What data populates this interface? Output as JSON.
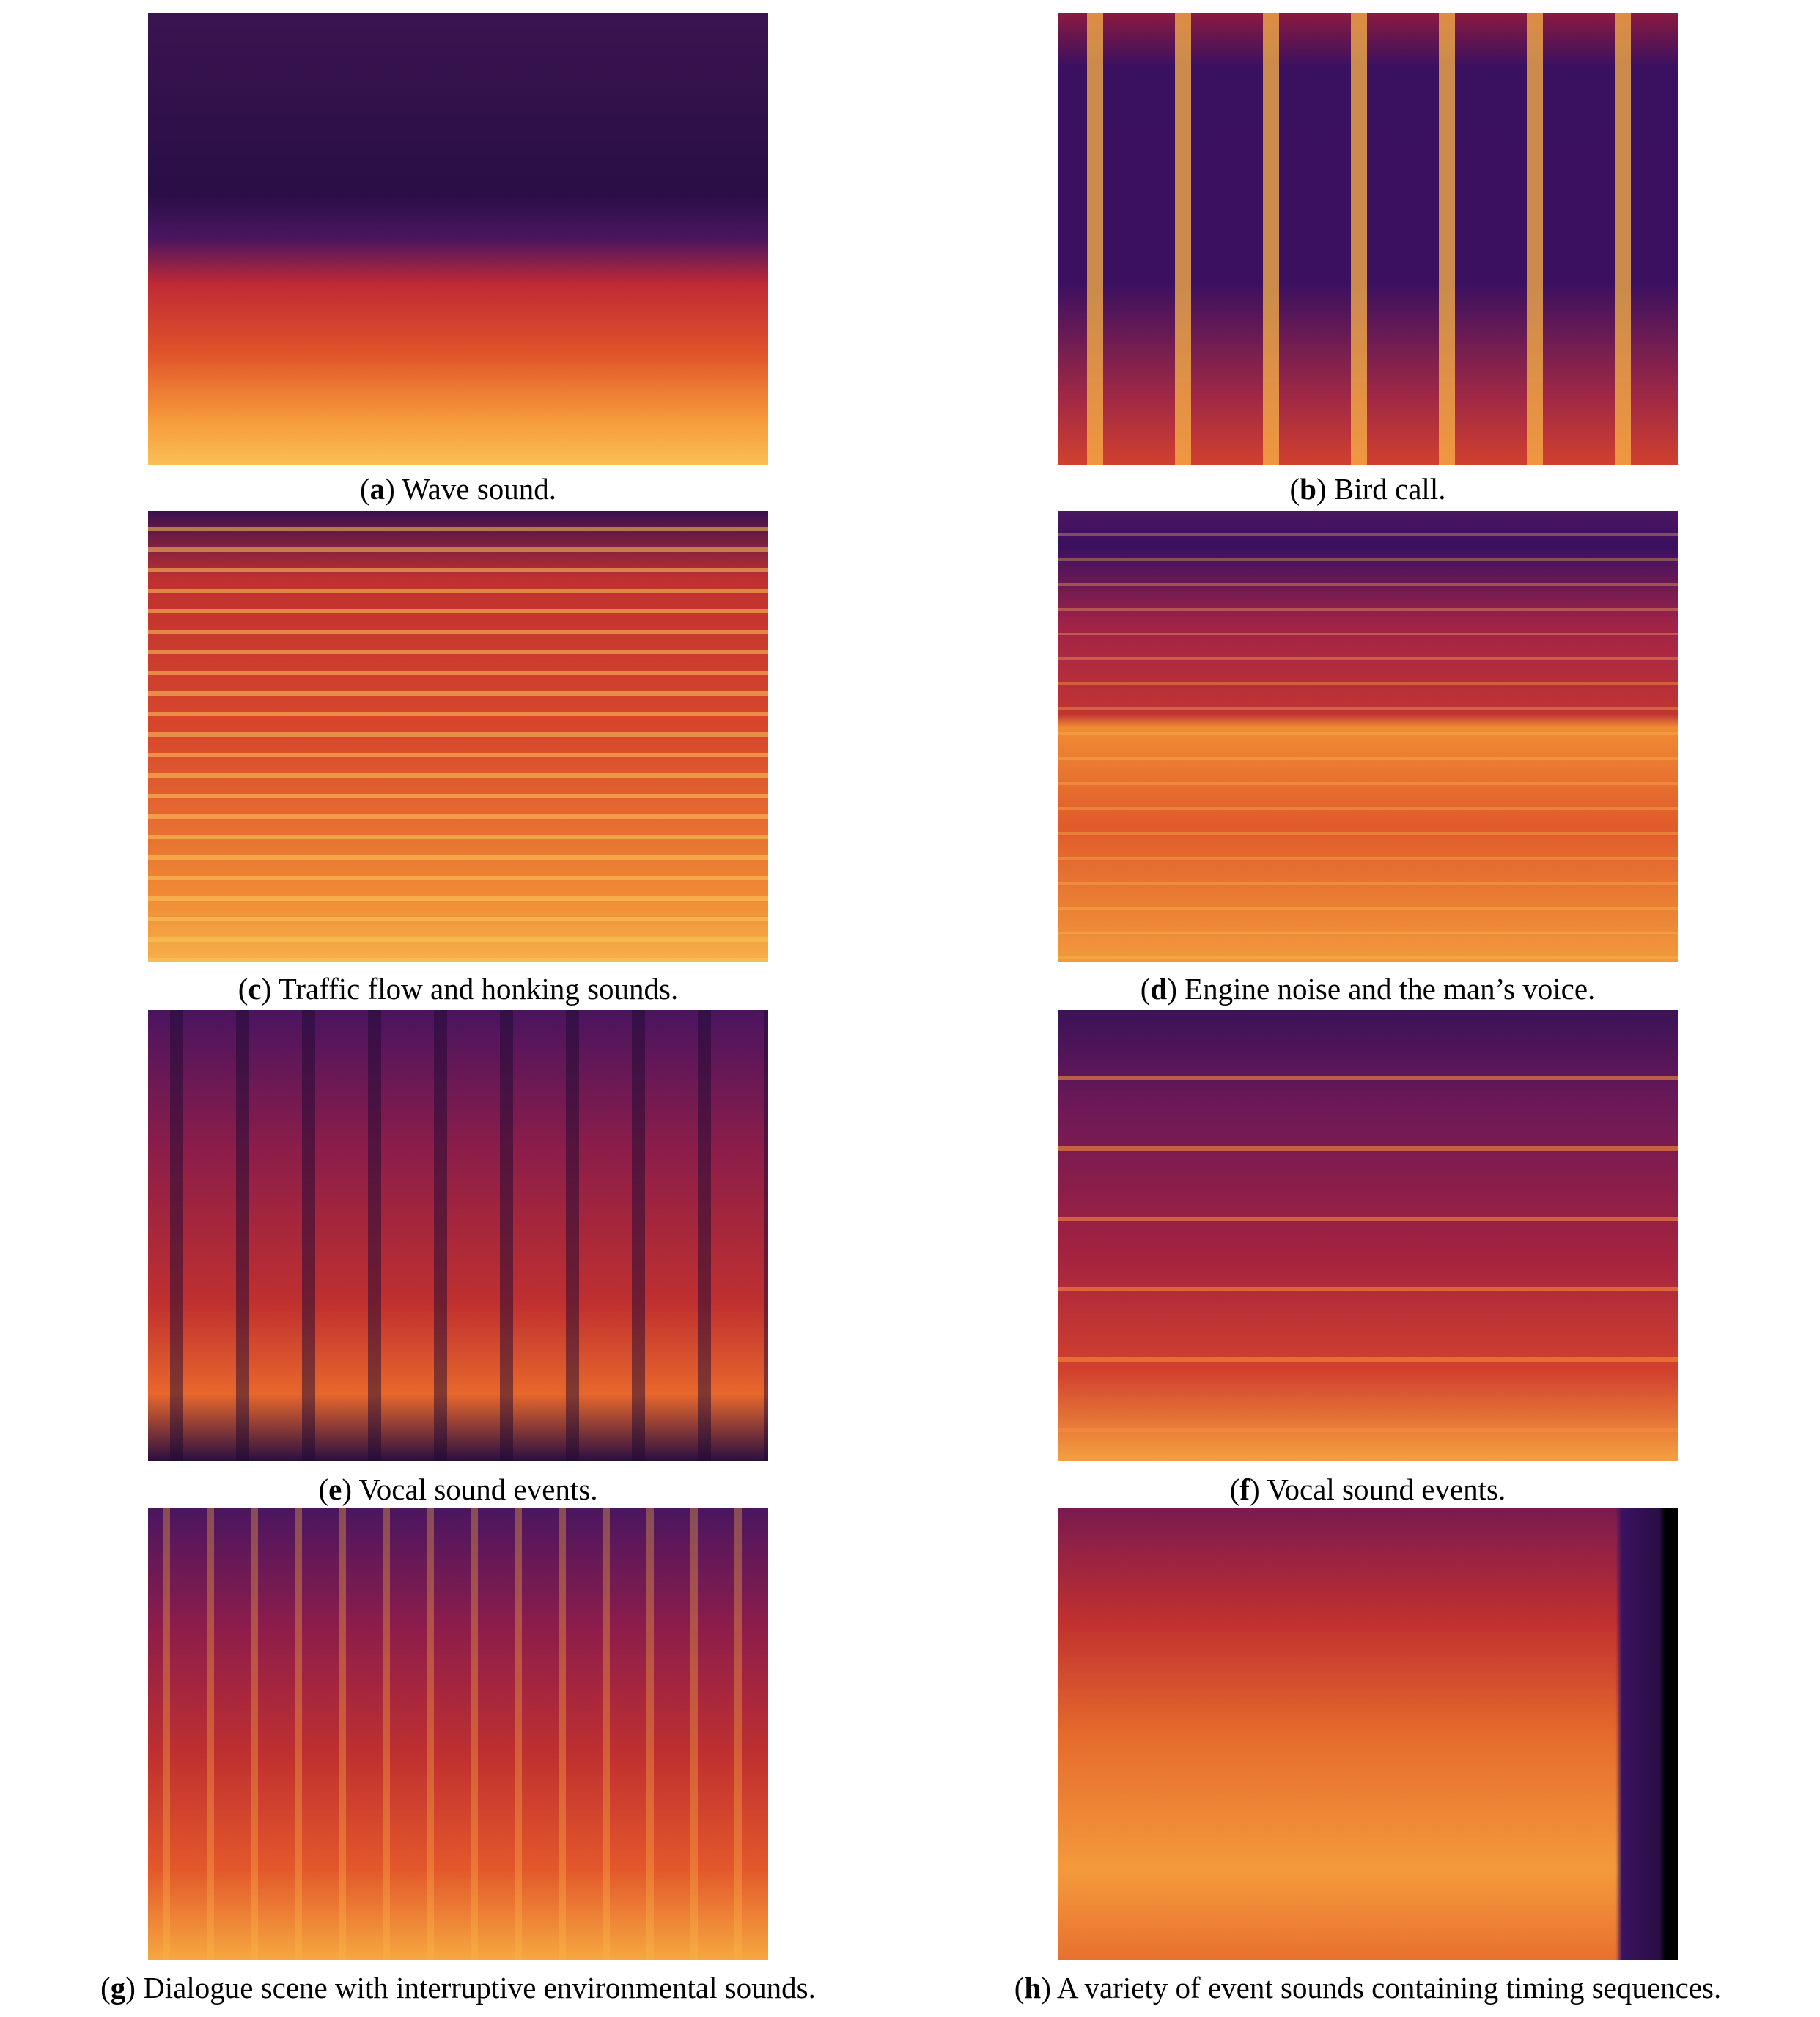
{
  "figure": {
    "panels": [
      {
        "caption": {
          "open": "(",
          "letter": "a",
          "rest": ") Wave sound."
        }
      },
      {
        "caption": {
          "open": "(",
          "letter": "b",
          "rest": ") Bird call."
        }
      },
      {
        "caption": {
          "open": "(",
          "letter": "c",
          "rest": ") Traffic flow and honking sounds."
        }
      },
      {
        "caption": {
          "open": "(",
          "letter": "d",
          "rest": ") Engine noise and the man’s voice."
        }
      },
      {
        "caption": {
          "open": "(",
          "letter": "e",
          "rest": ") Vocal sound events."
        }
      },
      {
        "caption": {
          "open": "(",
          "letter": "f",
          "rest": ") Vocal sound events."
        }
      },
      {
        "caption": {
          "open": "(",
          "letter": "g",
          "rest": ") Dialogue scene with interruptive environmental sounds."
        }
      },
      {
        "caption": {
          "open": "(",
          "letter": "h",
          "rest": ") A variety of event sounds containing timing sequences."
        }
      }
    ]
  }
}
